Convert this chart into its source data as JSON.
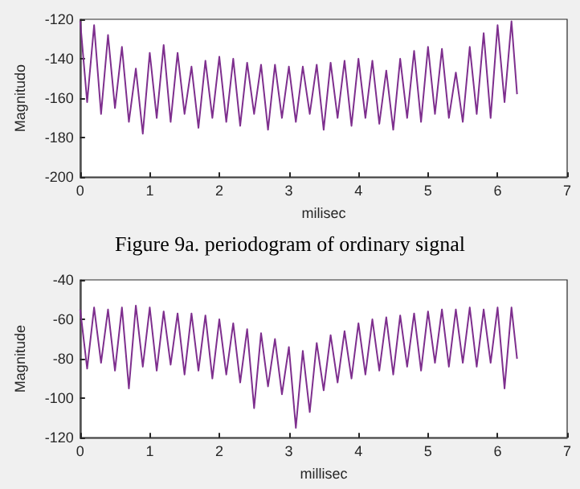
{
  "chart_data": [
    {
      "type": "line",
      "xlabel": "milisec",
      "ylabel": "Magnitudo",
      "annotations": [
        "Figure 9a. periodogram of ordinary signal"
      ],
      "xlim": [
        0,
        7
      ],
      "xticks": [
        0,
        1,
        2,
        3,
        4,
        5,
        6,
        7
      ],
      "ylim": [
        -200,
        -120
      ],
      "yticks": [
        -200,
        -180,
        -160,
        -140,
        -120
      ],
      "grid": false,
      "marker": "none",
      "line_style": "solid",
      "x": [
        0,
        0.1,
        0.2,
        0.3,
        0.4,
        0.5,
        0.6,
        0.7,
        0.8,
        0.9,
        1.0,
        1.1,
        1.2,
        1.3,
        1.4,
        1.5,
        1.6,
        1.7,
        1.8,
        1.9,
        2.0,
        2.1,
        2.2,
        2.3,
        2.4,
        2.5,
        2.6,
        2.7,
        2.8,
        2.9,
        3.0,
        3.1,
        3.2,
        3.3,
        3.4,
        3.5,
        3.6,
        3.7,
        3.8,
        3.9,
        4.0,
        4.1,
        4.2,
        4.3,
        4.4,
        4.5,
        4.6,
        4.7,
        4.8,
        4.9,
        5.0,
        5.1,
        5.2,
        5.3,
        5.4,
        5.5,
        5.6,
        5.7,
        5.8,
        5.9,
        6.0,
        6.1,
        6.2,
        6.28
      ],
      "series": [
        {
          "color": "#7e2f8e",
          "values": [
            -121,
            -162,
            -123,
            -168,
            -128,
            -165,
            -134,
            -172,
            -145,
            -178,
            -137,
            -170,
            -133,
            -172,
            -137,
            -168,
            -144,
            -175,
            -141,
            -170,
            -139,
            -172,
            -140,
            -174,
            -142,
            -168,
            -143,
            -176,
            -143,
            -170,
            -144,
            -172,
            -144,
            -168,
            -143,
            -176,
            -142,
            -170,
            -141,
            -174,
            -140,
            -170,
            -141,
            -173,
            -146,
            -176,
            -140,
            -170,
            -136,
            -172,
            -134,
            -168,
            -135,
            -170,
            -147,
            -172,
            -134,
            -168,
            -127,
            -170,
            -123,
            -162,
            -121,
            -158
          ]
        }
      ]
    },
    {
      "type": "line",
      "xlabel": "millisec",
      "ylabel": "Magnitude",
      "xlim": [
        0,
        7
      ],
      "xticks": [
        0,
        1,
        2,
        3,
        4,
        5,
        6,
        7
      ],
      "ylim": [
        -120,
        -40
      ],
      "yticks": [
        -120,
        -100,
        -80,
        -60,
        -40
      ],
      "grid": false,
      "marker": "none",
      "line_style": "solid",
      "x": [
        0,
        0.1,
        0.2,
        0.3,
        0.4,
        0.5,
        0.6,
        0.7,
        0.8,
        0.9,
        1.0,
        1.1,
        1.2,
        1.3,
        1.4,
        1.5,
        1.6,
        1.7,
        1.8,
        1.9,
        2.0,
        2.1,
        2.2,
        2.3,
        2.4,
        2.5,
        2.6,
        2.7,
        2.8,
        2.9,
        3.0,
        3.1,
        3.2,
        3.3,
        3.4,
        3.5,
        3.6,
        3.7,
        3.8,
        3.9,
        4.0,
        4.1,
        4.2,
        4.3,
        4.4,
        4.5,
        4.6,
        4.7,
        4.8,
        4.9,
        5.0,
        5.1,
        5.2,
        5.3,
        5.4,
        5.5,
        5.6,
        5.7,
        5.8,
        5.9,
        6.0,
        6.1,
        6.2,
        6.28
      ],
      "series": [
        {
          "color": "#7e2f8e",
          "values": [
            -55,
            -85,
            -54,
            -82,
            -55,
            -86,
            -54,
            -95,
            -53,
            -84,
            -54,
            -86,
            -56,
            -83,
            -57,
            -88,
            -57,
            -86,
            -58,
            -90,
            -60,
            -88,
            -62,
            -92,
            -65,
            -105,
            -67,
            -94,
            -70,
            -98,
            -74,
            -115,
            -76,
            -107,
            -72,
            -96,
            -68,
            -92,
            -66,
            -90,
            -62,
            -88,
            -60,
            -86,
            -59,
            -88,
            -58,
            -84,
            -57,
            -86,
            -56,
            -82,
            -55,
            -84,
            -55,
            -82,
            -54,
            -84,
            -55,
            -82,
            -54,
            -95,
            -54,
            -80
          ]
        }
      ]
    }
  ]
}
